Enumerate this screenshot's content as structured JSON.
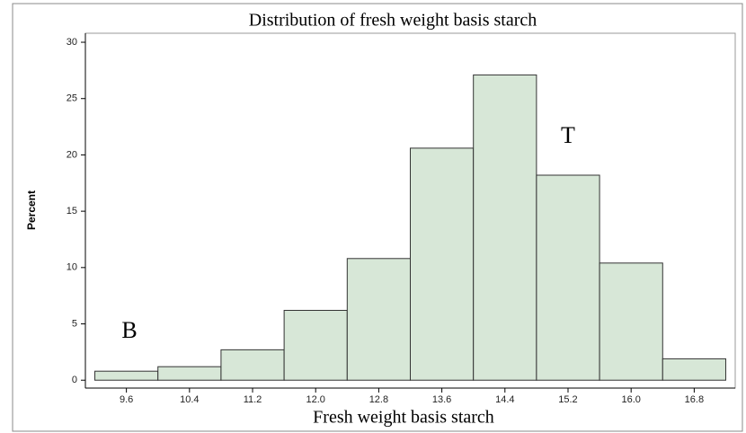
{
  "chart_data": {
    "type": "histogram",
    "title": "Distribution of fresh weight basis starch",
    "x_label": "Fresh weight basis starch",
    "y_label": "Percent",
    "bins": [
      9.2,
      10.0,
      10.8,
      11.6,
      12.4,
      13.2,
      14.0,
      14.8,
      15.6,
      16.4,
      17.2
    ],
    "values": [
      0.8,
      1.2,
      2.7,
      6.2,
      10.8,
      20.6,
      27.1,
      18.2,
      10.4,
      1.9
    ],
    "color": "#d7e7d7",
    "xlim": [
      9.08,
      17.32
    ],
    "ylim": [
      -0.7,
      30.8
    ],
    "xticks": [
      9.6,
      10.4,
      11.2,
      {
        "value": 12,
        "label": "12.0"
      },
      12.8,
      13.6,
      14.4,
      15.2,
      {
        "value": 16,
        "label": "16.0"
      },
      16.8
    ],
    "yticks": [
      0,
      5,
      10,
      15,
      20,
      25,
      30
    ],
    "annotations": [
      "B",
      "T"
    ]
  }
}
